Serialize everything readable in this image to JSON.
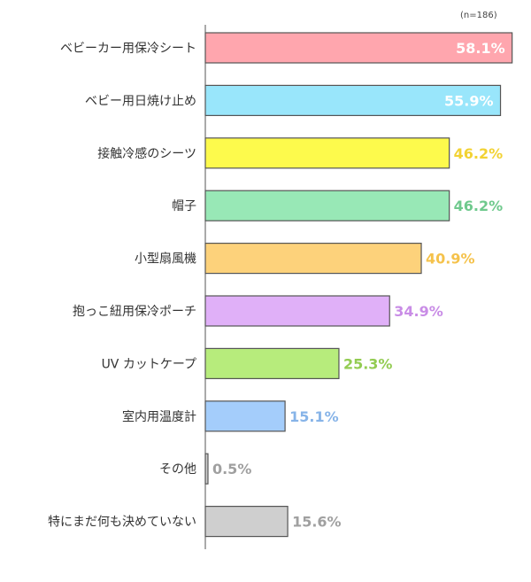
{
  "note": "(n=186)",
  "chart_data": {
    "type": "bar",
    "orientation": "horizontal",
    "categories": [
      "ベビーカー用保冷シート",
      "ベビー用日焼け止め",
      "接触冷感のシーツ",
      "帽子",
      "小型扇風機",
      "抱っこ紐用保冷ポーチ",
      "UV カットケープ",
      "室内用温度計",
      "その他",
      "特にまだ何も決めていない"
    ],
    "values": [
      58.1,
      55.9,
      46.2,
      46.2,
      40.9,
      34.9,
      25.3,
      15.1,
      0.5,
      15.6
    ],
    "value_labels": [
      "58.1%",
      "55.9%",
      "46.2%",
      "46.2%",
      "40.9%",
      "34.9%",
      "25.3%",
      "15.1%",
      "0.5%",
      "15.6%"
    ],
    "xlim": [
      0,
      60
    ],
    "colors": [
      "#ffa6ae",
      "#99e6fb",
      "#fdfa4c",
      "#98e8b6",
      "#fdd27b",
      "#e0b0f8",
      "#b7ec7c",
      "#a4cdfb",
      "#cfcfcf",
      "#cfcfcf"
    ],
    "label_colors": [
      "#ffffff",
      "#ffffff",
      "#f2d233",
      "#6fc98d",
      "#f5c24b",
      "#c98de6",
      "#93cc52",
      "#87b4e8",
      "#a0a0a0",
      "#a0a0a0"
    ],
    "label_inside": [
      true,
      true,
      false,
      false,
      false,
      false,
      false,
      false,
      false,
      false
    ],
    "category_text_color": "#333333",
    "bar_stroke": "#555555",
    "grid": false,
    "legend": "none"
  }
}
